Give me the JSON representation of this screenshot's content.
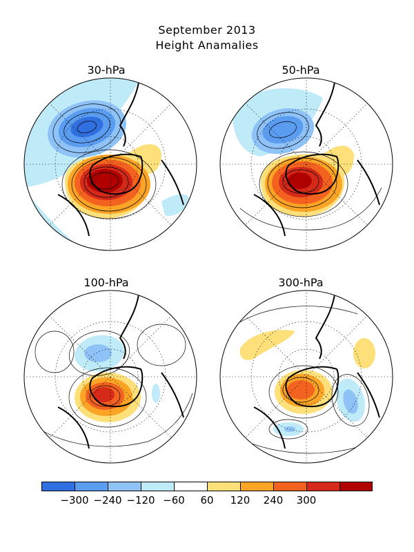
{
  "title": {
    "line1": "September 2013",
    "line2": "Height Anamalies"
  },
  "panels": [
    {
      "id": "p30",
      "label": "30-hPa"
    },
    {
      "id": "p50",
      "label": "50-hPa"
    },
    {
      "id": "p100",
      "label": "100-hPa"
    },
    {
      "id": "p300",
      "label": "300-hPa"
    }
  ],
  "colorbar": {
    "colors": [
      "#2f6fe0",
      "#5a9cf0",
      "#8fc3f8",
      "#bfeaf8",
      "#ffffff",
      "#fde07a",
      "#fba425",
      "#f4621f",
      "#d52a1a",
      "#b00000"
    ],
    "labels": [
      "−300",
      "−240",
      "−120",
      "−60",
      "60",
      "120",
      "240",
      "300"
    ]
  }
}
